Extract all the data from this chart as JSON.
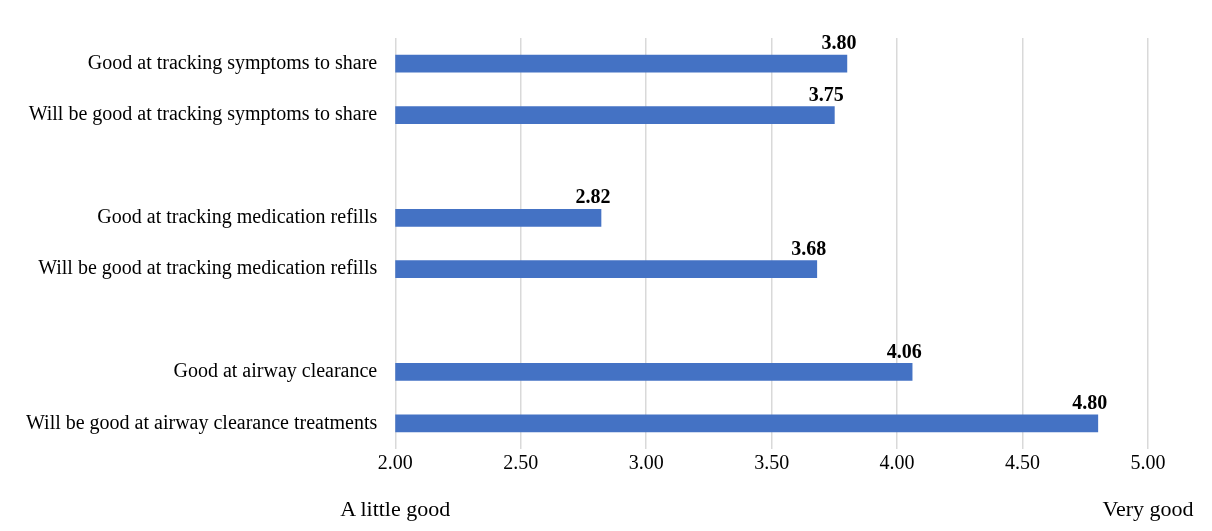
{
  "chart_data": {
    "type": "bar",
    "orientation": "horizontal",
    "categories": [
      "Good at tracking symptoms to share",
      "Will be good at tracking symptoms to share",
      null,
      "Good at tracking medication refills",
      "Will be good at tracking medication refills",
      null,
      "Good at airway clearance",
      "Will be good at airway clearance treatments"
    ],
    "values": [
      3.8,
      3.75,
      null,
      2.82,
      3.68,
      null,
      4.06,
      4.8
    ],
    "value_labels": [
      "3.80",
      "3.75",
      null,
      "2.82",
      "3.68",
      null,
      "4.06",
      "4.80"
    ],
    "color": "#4472c4",
    "xlim": [
      2,
      5
    ],
    "xticks": [
      {
        "value": 2,
        "label": "2.00"
      },
      {
        "value": 2.5,
        "label": "2.50"
      },
      {
        "value": 3,
        "label": "3.00"
      },
      {
        "value": 3.5,
        "label": "3.50"
      },
      {
        "value": 4,
        "label": "4.00"
      },
      {
        "value": 4.5,
        "label": "4.50"
      },
      {
        "value": 5,
        "label": "5.00"
      }
    ],
    "grid": "x",
    "annotations": [
      "A little good",
      "Very good"
    ]
  }
}
